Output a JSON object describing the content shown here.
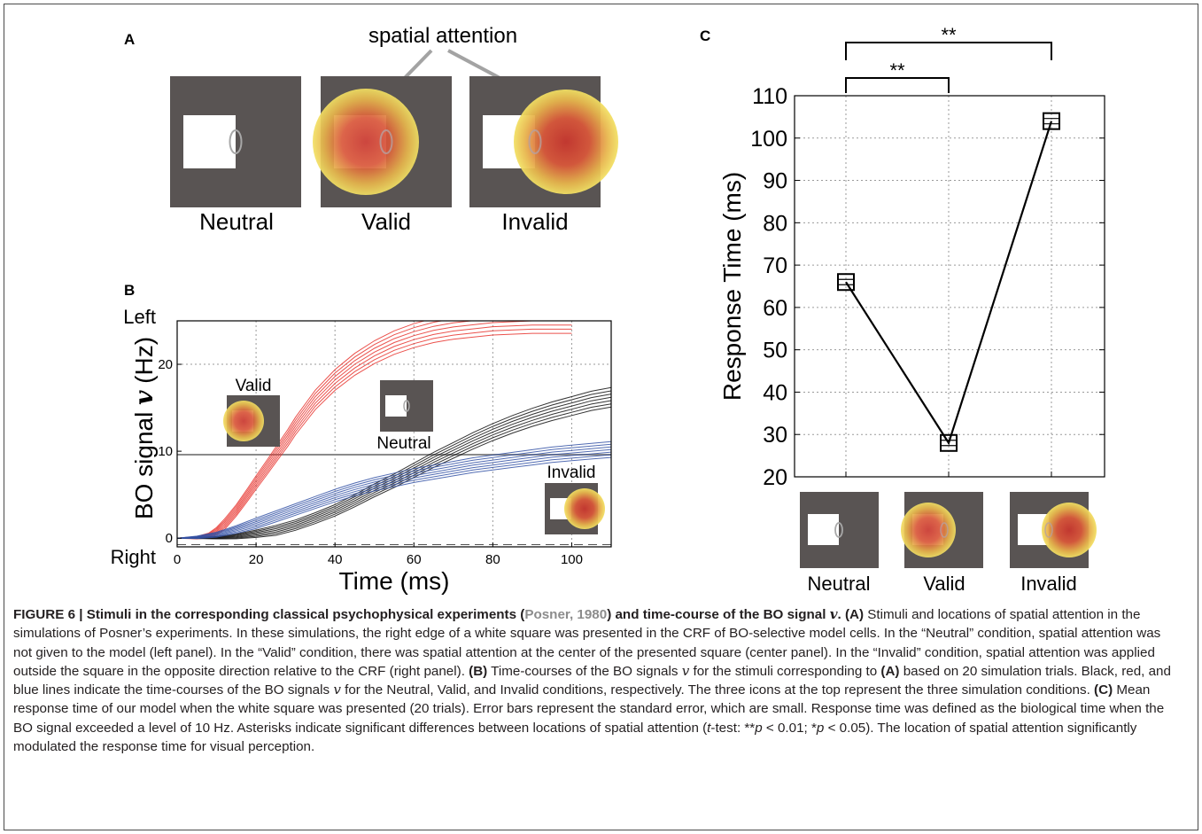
{
  "panels": {
    "a": {
      "label": "A",
      "attention_label": "spatial attention",
      "stimuli": [
        "Neutral",
        "Valid",
        "Invalid"
      ]
    },
    "b": {
      "label": "B",
      "ylabel_text": "BO signal ",
      "ylabel_symbol": "v",
      "ylabel_unit": " (Hz)",
      "xlabel": "Time (ms)",
      "y_top_label": "Left",
      "y_bottom_label": "Right",
      "inset_labels": [
        "Valid",
        "Neutral",
        "Invalid"
      ]
    },
    "c": {
      "label": "C",
      "ylabel": "Response Time (ms)",
      "significance": [
        "**",
        "**"
      ],
      "stimuli": [
        "Neutral",
        "Valid",
        "Invalid"
      ]
    }
  },
  "chart_data": [
    {
      "type": "line",
      "panel": "B",
      "xlabel": "Time (ms)",
      "ylabel": "BO signal v (Hz)",
      "xlim": [
        0,
        110
      ],
      "ylim": [
        -1,
        25
      ],
      "x_ticks": [
        0,
        20,
        40,
        60,
        80,
        100
      ],
      "y_ticks": [
        0,
        10,
        20
      ],
      "grid": true,
      "threshold": 10,
      "series": [
        {
          "name": "Valid",
          "color": "#e8322d",
          "x": [
            0,
            5,
            8,
            10,
            12,
            15,
            18,
            20,
            23,
            25,
            28,
            30,
            33,
            35,
            40,
            45,
            50,
            55,
            60,
            65,
            70,
            80,
            90,
            100
          ],
          "values": [
            0,
            0.05,
            0.3,
            0.8,
            1.6,
            3.2,
            5.1,
            6.4,
            8.3,
            9.6,
            11.5,
            12.9,
            14.7,
            15.9,
            18.2,
            20.0,
            21.4,
            22.5,
            23.3,
            23.9,
            24.3,
            24.8,
            25.0,
            25.0
          ]
        },
        {
          "name": "Neutral",
          "color": "#111111",
          "x": [
            0,
            10,
            15,
            20,
            25,
            30,
            35,
            40,
            45,
            50,
            55,
            60,
            65,
            70,
            75,
            80,
            85,
            90,
            95,
            100,
            105,
            110
          ],
          "values": [
            0,
            0.05,
            0.2,
            0.5,
            0.9,
            1.5,
            2.3,
            3.2,
            4.3,
            5.5,
            6.6,
            7.8,
            9.0,
            10.1,
            11.2,
            12.2,
            13.1,
            13.9,
            14.6,
            15.2,
            15.8,
            16.2
          ]
        },
        {
          "name": "Invalid",
          "color": "#3452a6",
          "x": [
            0,
            5,
            10,
            15,
            20,
            25,
            30,
            35,
            40,
            45,
            50,
            55,
            60,
            65,
            70,
            75,
            80,
            85,
            90,
            95,
            100,
            105,
            110
          ],
          "values": [
            0,
            0.1,
            0.4,
            1.0,
            1.7,
            2.5,
            3.3,
            4.1,
            4.9,
            5.6,
            6.2,
            6.7,
            7.2,
            7.6,
            8.0,
            8.4,
            8.7,
            9.0,
            9.3,
            9.6,
            9.8,
            10.0,
            10.2
          ]
        }
      ]
    },
    {
      "type": "line",
      "panel": "C",
      "ylabel": "Response Time (ms)",
      "categories": [
        "Neutral",
        "Valid",
        "Invalid"
      ],
      "values": [
        66,
        28,
        104
      ],
      "ylim": [
        20,
        110
      ],
      "y_ticks": [
        20,
        30,
        40,
        50,
        60,
        70,
        80,
        90,
        100,
        110
      ],
      "grid": true,
      "error_bars": true
    }
  ],
  "caption": {
    "lead_bold": "FIGURE 6 | Stimuli in the corresponding classical psychophysical experiments (",
    "ref": "Posner, 1980",
    "lead_bold_after": ") and time-course of the BO signal ",
    "symbol_v": "v",
    "a_tag": "(A)",
    "a_text": " Stimuli and locations of spatial attention in the simulations of Posner’s experiments. In these simulations, the right edge of a white square was presented in the CRF of BO-selective model cells. In the “Neutral” condition, spatial attention was not given to the model (left panel). In the “Valid” condition, there was spatial attention at the center of the presented square (center panel). In the “Invalid” condition, spatial attention was applied outside the square in the opposite direction relative to the CRF (right panel). ",
    "b_tag": "(B)",
    "b_text_1": " Time-courses of the BO signals ",
    "b_text_2": " for the stimuli corresponding to ",
    "b_ref_a": "(A)",
    "b_text_3": " based on 20 simulation trials. Black, red, and blue lines indicate the time-courses of the BO signals ",
    "b_text_4": " for the Neutral, Valid, and Invalid conditions, respectively. The three icons at the top represent the three simulation conditions. ",
    "c_tag": "(C)",
    "c_text_1": " Mean response time of our model when the white square was presented (20 trials). Error bars represent the standard error, which are small. Response time was defined as the biological time when the BO signal exceeded a level of 10 Hz. Asterisks indicate significant differences between locations of spatial attention (",
    "c_t": "t",
    "c_text_2": "-test: **",
    "c_p1": "p",
    "c_text_3": " < 0.01; *",
    "c_p2": "p",
    "c_text_4": " < 0.05). The location of spatial attention significantly modulated the response time for visual perception."
  }
}
